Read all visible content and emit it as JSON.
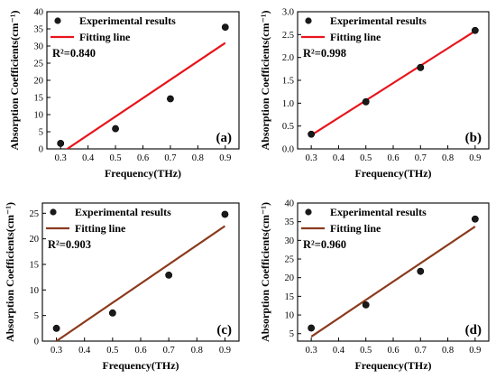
{
  "chart_data": [
    {
      "type": "scatter",
      "panel_label": "(a)",
      "xlabel": "Frequency(THz)",
      "ylabel": "Absorption Coefficients(cm⁻¹)",
      "xlim": [
        0.25,
        0.95
      ],
      "ylim": [
        0,
        40
      ],
      "xticks": [
        0.3,
        0.4,
        0.5,
        0.6,
        0.7,
        0.8,
        0.9
      ],
      "yticks": [
        0,
        5,
        10,
        15,
        20,
        25,
        30,
        35,
        40
      ],
      "legend": {
        "placement": "top-left",
        "scatter_label": "Experimental results",
        "line_label": "Fitting line"
      },
      "annotation": "R²=0.840",
      "line_color": "#e8141b",
      "series": [
        {
          "name": "Experimental results",
          "kind": "scatter",
          "x": [
            0.3,
            0.5,
            0.7,
            0.9
          ],
          "y": [
            1.6,
            5.9,
            14.6,
            35.5
          ]
        },
        {
          "name": "Fitting line",
          "kind": "line",
          "x": [
            0.3,
            0.9
          ],
          "y": [
            -1.3,
            30.9
          ]
        }
      ]
    },
    {
      "type": "scatter",
      "panel_label": "(b)",
      "xlabel": "Frequency(THz)",
      "ylabel": "Absorption Coefficients(cm⁻¹)",
      "xlim": [
        0.25,
        0.95
      ],
      "ylim": [
        0,
        3.0
      ],
      "xticks": [
        0.3,
        0.4,
        0.5,
        0.6,
        0.7,
        0.8,
        0.9
      ],
      "yticks": [
        0.0,
        0.5,
        1.0,
        1.5,
        2.0,
        2.5,
        3.0
      ],
      "legend": {
        "placement": "top-left",
        "scatter_label": "Experimental results",
        "line_label": "Fitting line"
      },
      "annotation": "R²=0.998",
      "line_color": "#e8141b",
      "series": [
        {
          "name": "Experimental results",
          "kind": "scatter",
          "x": [
            0.3,
            0.5,
            0.7,
            0.9
          ],
          "y": [
            0.32,
            1.03,
            1.78,
            2.59
          ]
        },
        {
          "name": "Fitting line",
          "kind": "line",
          "x": [
            0.3,
            0.9
          ],
          "y": [
            0.3,
            2.58
          ]
        }
      ]
    },
    {
      "type": "scatter",
      "panel_label": "(c)",
      "xlabel": "Frequency(THz)",
      "ylabel": "Absorption Coefficients(cm⁻¹)",
      "xlim": [
        0.25,
        0.95
      ],
      "ylim": [
        0,
        27
      ],
      "xticks": [
        0.3,
        0.4,
        0.5,
        0.6,
        0.7,
        0.8,
        0.9
      ],
      "yticks": [
        0,
        5,
        10,
        15,
        20,
        25
      ],
      "legend": {
        "placement": "top-left",
        "scatter_label": "Experimental results",
        "line_label": "Fitting line"
      },
      "annotation": "R²=0.903",
      "line_color": "#8b3a1c",
      "series": [
        {
          "name": "Experimental results",
          "kind": "scatter",
          "x": [
            0.3,
            0.5,
            0.7,
            0.9
          ],
          "y": [
            2.5,
            5.5,
            12.9,
            24.8
          ]
        },
        {
          "name": "Fitting line",
          "kind": "line",
          "x": [
            0.3,
            0.9
          ],
          "y": [
            0.0,
            22.5
          ]
        }
      ]
    },
    {
      "type": "scatter",
      "panel_label": "(d)",
      "xlabel": "Frequency(THz)",
      "ylabel": "Absorption Coefficients(cm⁻¹)",
      "xlim": [
        0.25,
        0.95
      ],
      "ylim": [
        3,
        40
      ],
      "xticks": [
        0.3,
        0.4,
        0.5,
        0.6,
        0.7,
        0.8,
        0.9
      ],
      "yticks": [
        5,
        10,
        15,
        20,
        25,
        30,
        35,
        40
      ],
      "legend": {
        "placement": "top-left",
        "scatter_label": "Experimental results",
        "line_label": "Fitting line"
      },
      "annotation": "R²=0.960",
      "line_color": "#8b3a1c",
      "series": [
        {
          "name": "Experimental results",
          "kind": "scatter",
          "x": [
            0.3,
            0.5,
            0.7,
            0.9
          ],
          "y": [
            6.5,
            12.7,
            21.7,
            35.7
          ]
        },
        {
          "name": "Fitting line",
          "kind": "line",
          "x": [
            0.3,
            0.9
          ],
          "y": [
            4.2,
            33.7
          ]
        }
      ]
    }
  ]
}
